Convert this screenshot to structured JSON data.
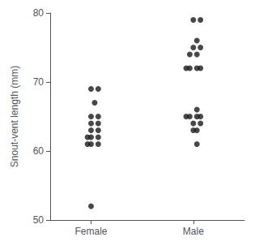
{
  "chart_data": {
    "type": "scatter",
    "ylabel": "Snout-vent length (mm)",
    "x": [
      1.0,
      1.07,
      1.035,
      1.0,
      1.07,
      1.0,
      1.07,
      1.0,
      1.07,
      0.965,
      1.0,
      1.07,
      0.965,
      1.0,
      1.07,
      1.0,
      2.0,
      2.07,
      2.035,
      2.0,
      2.07,
      1.965,
      2.035,
      1.93,
      1.965,
      2.035,
      2.07,
      2.035,
      1.93,
      1.965,
      2.035,
      2.07,
      2.0,
      2.07,
      2.035,
      2.0,
      2.035
    ],
    "values": [
      69,
      69,
      67,
      65,
      65,
      64,
      64,
      63,
      63,
      62,
      62,
      62,
      61,
      61,
      61,
      52,
      79,
      79,
      76,
      75,
      75,
      74,
      74,
      72,
      72,
      72,
      72,
      66,
      65,
      65,
      65,
      65,
      64,
      64,
      63,
      63,
      61
    ],
    "color": "#1a1a1a",
    "xlim": [
      0.6,
      2.5
    ],
    "xticks": [
      {
        "value": 1.0,
        "label": "Female"
      },
      {
        "value": 2.0,
        "label": "Male"
      }
    ],
    "ylim": [
      50,
      80
    ],
    "yticks": [
      50,
      60,
      70,
      80
    ],
    "grid": false
  }
}
